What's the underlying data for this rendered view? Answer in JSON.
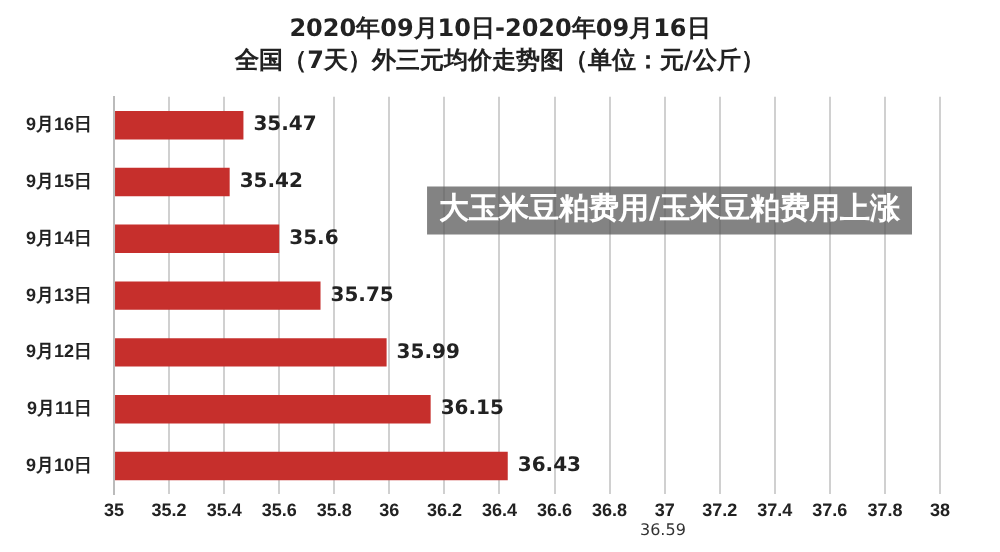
{
  "chart_data": {
    "type": "bar",
    "orientation": "horizontal",
    "title": "2020年09月10日-2020年09月16日",
    "subtitle": "全国（7天）外三元均价走势图（单位：元/公斤）",
    "categories": [
      "9月16日",
      "9月15日",
      "9月14日",
      "9月13日",
      "9月12日",
      "9月11日",
      "9月10日"
    ],
    "values": [
      35.47,
      35.42,
      35.6,
      35.75,
      35.99,
      36.15,
      36.43
    ],
    "color": "#c62f2c",
    "xlim": [
      35,
      38
    ],
    "xticks": [
      35,
      35.2,
      35.4,
      35.6,
      35.8,
      36,
      36.2,
      36.4,
      36.6,
      36.8,
      37,
      37.2,
      37.4,
      37.6,
      37.8,
      38
    ],
    "grid": "x",
    "data_labels": true,
    "legend": false,
    "annotations": [
      "大玉米豆粕费用/玉米豆粕费用上涨",
      "36.59"
    ]
  }
}
